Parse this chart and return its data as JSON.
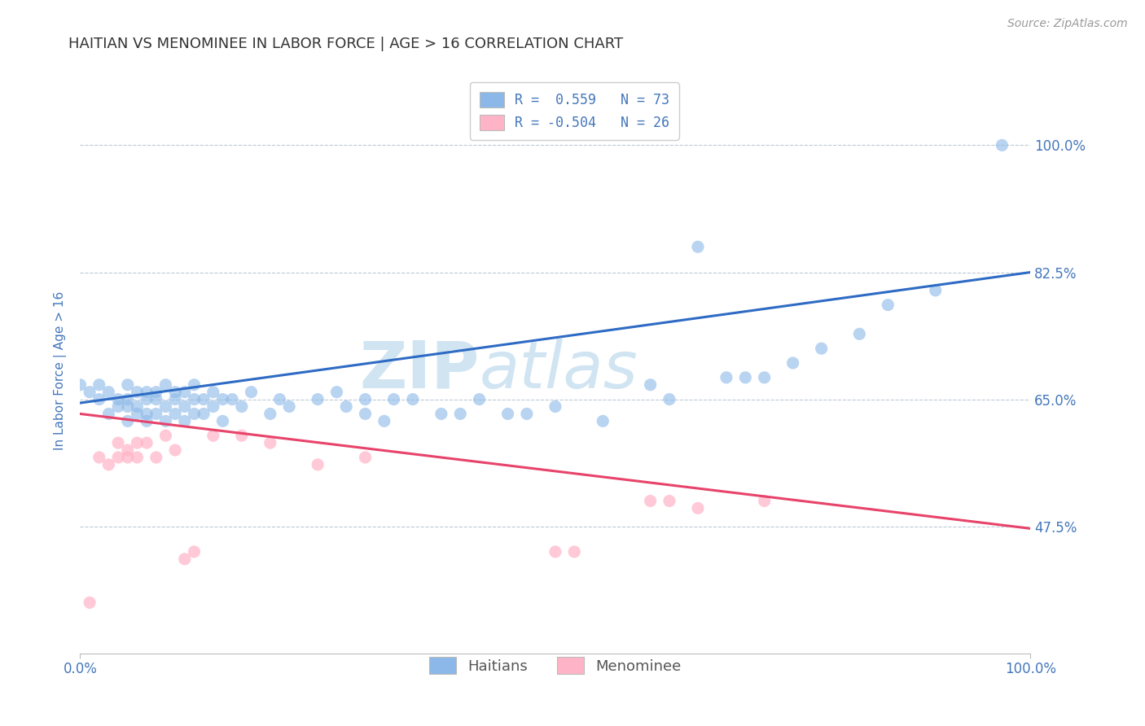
{
  "title": "HAITIAN VS MENOMINEE IN LABOR FORCE | AGE > 16 CORRELATION CHART",
  "source_text": "Source: ZipAtlas.com",
  "ylabel": "In Labor Force | Age > 16",
  "xlim": [
    0.0,
    1.0
  ],
  "ylim": [
    0.3,
    1.08
  ],
  "yticks": [
    0.475,
    0.65,
    0.825,
    1.0
  ],
  "ytick_labels": [
    "47.5%",
    "65.0%",
    "82.5%",
    "100.0%"
  ],
  "xticks": [
    0.0,
    1.0
  ],
  "xtick_labels": [
    "0.0%",
    "100.0%"
  ],
  "legend_r1": "R =  0.559",
  "legend_n1": "N = 73",
  "legend_r2": "R = -0.504",
  "legend_n2": "N = 26",
  "blue_color": "#8BB8E8",
  "pink_color": "#FFB3C6",
  "line_blue": "#2E6BC4",
  "line_pink": "#E8436A",
  "title_color": "#333333",
  "axis_label_color": "#4477BB",
  "watermark_color": "#D0E4F2",
  "background_color": "#FFFFFF",
  "blue_scatter_x": [
    0.0,
    0.01,
    0.02,
    0.02,
    0.03,
    0.03,
    0.04,
    0.04,
    0.05,
    0.05,
    0.05,
    0.05,
    0.06,
    0.06,
    0.06,
    0.07,
    0.07,
    0.07,
    0.07,
    0.08,
    0.08,
    0.08,
    0.09,
    0.09,
    0.09,
    0.1,
    0.1,
    0.1,
    0.11,
    0.11,
    0.11,
    0.12,
    0.12,
    0.12,
    0.13,
    0.13,
    0.14,
    0.14,
    0.15,
    0.15,
    0.16,
    0.17,
    0.18,
    0.2,
    0.21,
    0.22,
    0.25,
    0.27,
    0.28,
    0.3,
    0.3,
    0.32,
    0.33,
    0.35,
    0.38,
    0.4,
    0.42,
    0.45,
    0.47,
    0.5,
    0.55,
    0.6,
    0.62,
    0.65,
    0.68,
    0.7,
    0.72,
    0.75,
    0.78,
    0.82,
    0.85,
    0.9,
    0.97
  ],
  "blue_scatter_y": [
    0.67,
    0.66,
    0.65,
    0.67,
    0.63,
    0.66,
    0.64,
    0.65,
    0.62,
    0.64,
    0.65,
    0.67,
    0.63,
    0.64,
    0.66,
    0.62,
    0.63,
    0.65,
    0.66,
    0.63,
    0.65,
    0.66,
    0.62,
    0.64,
    0.67,
    0.63,
    0.65,
    0.66,
    0.62,
    0.64,
    0.66,
    0.63,
    0.65,
    0.67,
    0.63,
    0.65,
    0.64,
    0.66,
    0.62,
    0.65,
    0.65,
    0.64,
    0.66,
    0.63,
    0.65,
    0.64,
    0.65,
    0.66,
    0.64,
    0.63,
    0.65,
    0.62,
    0.65,
    0.65,
    0.63,
    0.63,
    0.65,
    0.63,
    0.63,
    0.64,
    0.62,
    0.67,
    0.65,
    0.86,
    0.68,
    0.68,
    0.68,
    0.7,
    0.72,
    0.74,
    0.78,
    0.8,
    1.0
  ],
  "pink_scatter_x": [
    0.01,
    0.02,
    0.03,
    0.04,
    0.04,
    0.05,
    0.05,
    0.06,
    0.06,
    0.07,
    0.08,
    0.09,
    0.1,
    0.11,
    0.12,
    0.14,
    0.17,
    0.2,
    0.25,
    0.3,
    0.5,
    0.52,
    0.6,
    0.62,
    0.65,
    0.72
  ],
  "pink_scatter_y": [
    0.37,
    0.57,
    0.56,
    0.59,
    0.57,
    0.58,
    0.57,
    0.59,
    0.57,
    0.59,
    0.57,
    0.6,
    0.58,
    0.43,
    0.44,
    0.6,
    0.6,
    0.59,
    0.56,
    0.57,
    0.44,
    0.44,
    0.51,
    0.51,
    0.5,
    0.51
  ]
}
